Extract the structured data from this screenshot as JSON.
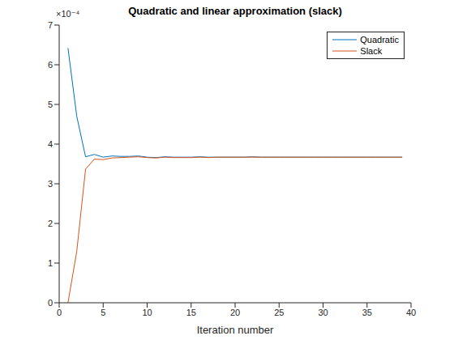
{
  "chart_data": {
    "type": "line",
    "title": "Quadratic and linear approximation (slack)",
    "x_label": "Iteration number",
    "annotations": [
      {
        "text": "×10⁻⁴"
      }
    ],
    "x": [
      1,
      2,
      3,
      4,
      5,
      6,
      7,
      8,
      9,
      10,
      11,
      12,
      13,
      14,
      15,
      16,
      17,
      18,
      19,
      20,
      21,
      22,
      23,
      24,
      25,
      26,
      27,
      28,
      29,
      30,
      31,
      32,
      33,
      34,
      35,
      36,
      37,
      38,
      39
    ],
    "series": [
      {
        "name": "Quadratic",
        "color": "#0072BD",
        "values": [
          0.000642,
          0.00047,
          0.000368,
          0.000374,
          0.000367,
          0.00037,
          0.000369,
          0.000369,
          0.00037,
          0.000367,
          0.000366,
          0.000368,
          0.000367,
          0.000367,
          0.000367,
          0.000368,
          0.000367,
          0.000367,
          0.000367,
          0.000367,
          0.000367,
          0.000368,
          0.000367,
          0.000367,
          0.000367,
          0.000367,
          0.000367,
          0.000367,
          0.000367,
          0.000367,
          0.000367,
          0.000367,
          0.000367,
          0.000367,
          0.000367,
          0.000367,
          0.000367,
          0.000367,
          0.000367
        ]
      },
      {
        "name": "Slack",
        "color": "#D95319",
        "values": [
          0.0,
          0.00013,
          0.000337,
          0.000362,
          0.000361,
          0.000365,
          0.000366,
          0.000367,
          0.000368,
          0.000366,
          0.000365,
          0.000367,
          0.000366,
          0.000366,
          0.000366,
          0.000367,
          0.000366,
          0.000367,
          0.000367,
          0.000367,
          0.000367,
          0.000367,
          0.000367,
          0.000367,
          0.000367,
          0.000367,
          0.000367,
          0.000367,
          0.000367,
          0.000367,
          0.000367,
          0.000367,
          0.000367,
          0.000367,
          0.000367,
          0.000367,
          0.000367,
          0.000367,
          0.000367
        ]
      }
    ],
    "xlim": [
      0,
      40
    ],
    "xticks": [
      0,
      5,
      10,
      15,
      20,
      25,
      30,
      35,
      40
    ],
    "ylim": [
      0,
      0.0007
    ],
    "yticks": [
      {
        "value": 0,
        "label": "0"
      },
      {
        "value": 0.0001,
        "label": "1"
      },
      {
        "value": 0.0002,
        "label": "2"
      },
      {
        "value": 0.0003,
        "label": "3"
      },
      {
        "value": 0.0004,
        "label": "4"
      },
      {
        "value": 0.0005,
        "label": "5"
      },
      {
        "value": 0.0006,
        "label": "6"
      },
      {
        "value": 0.0007,
        "label": "7"
      }
    ],
    "legend": "northeast"
  }
}
